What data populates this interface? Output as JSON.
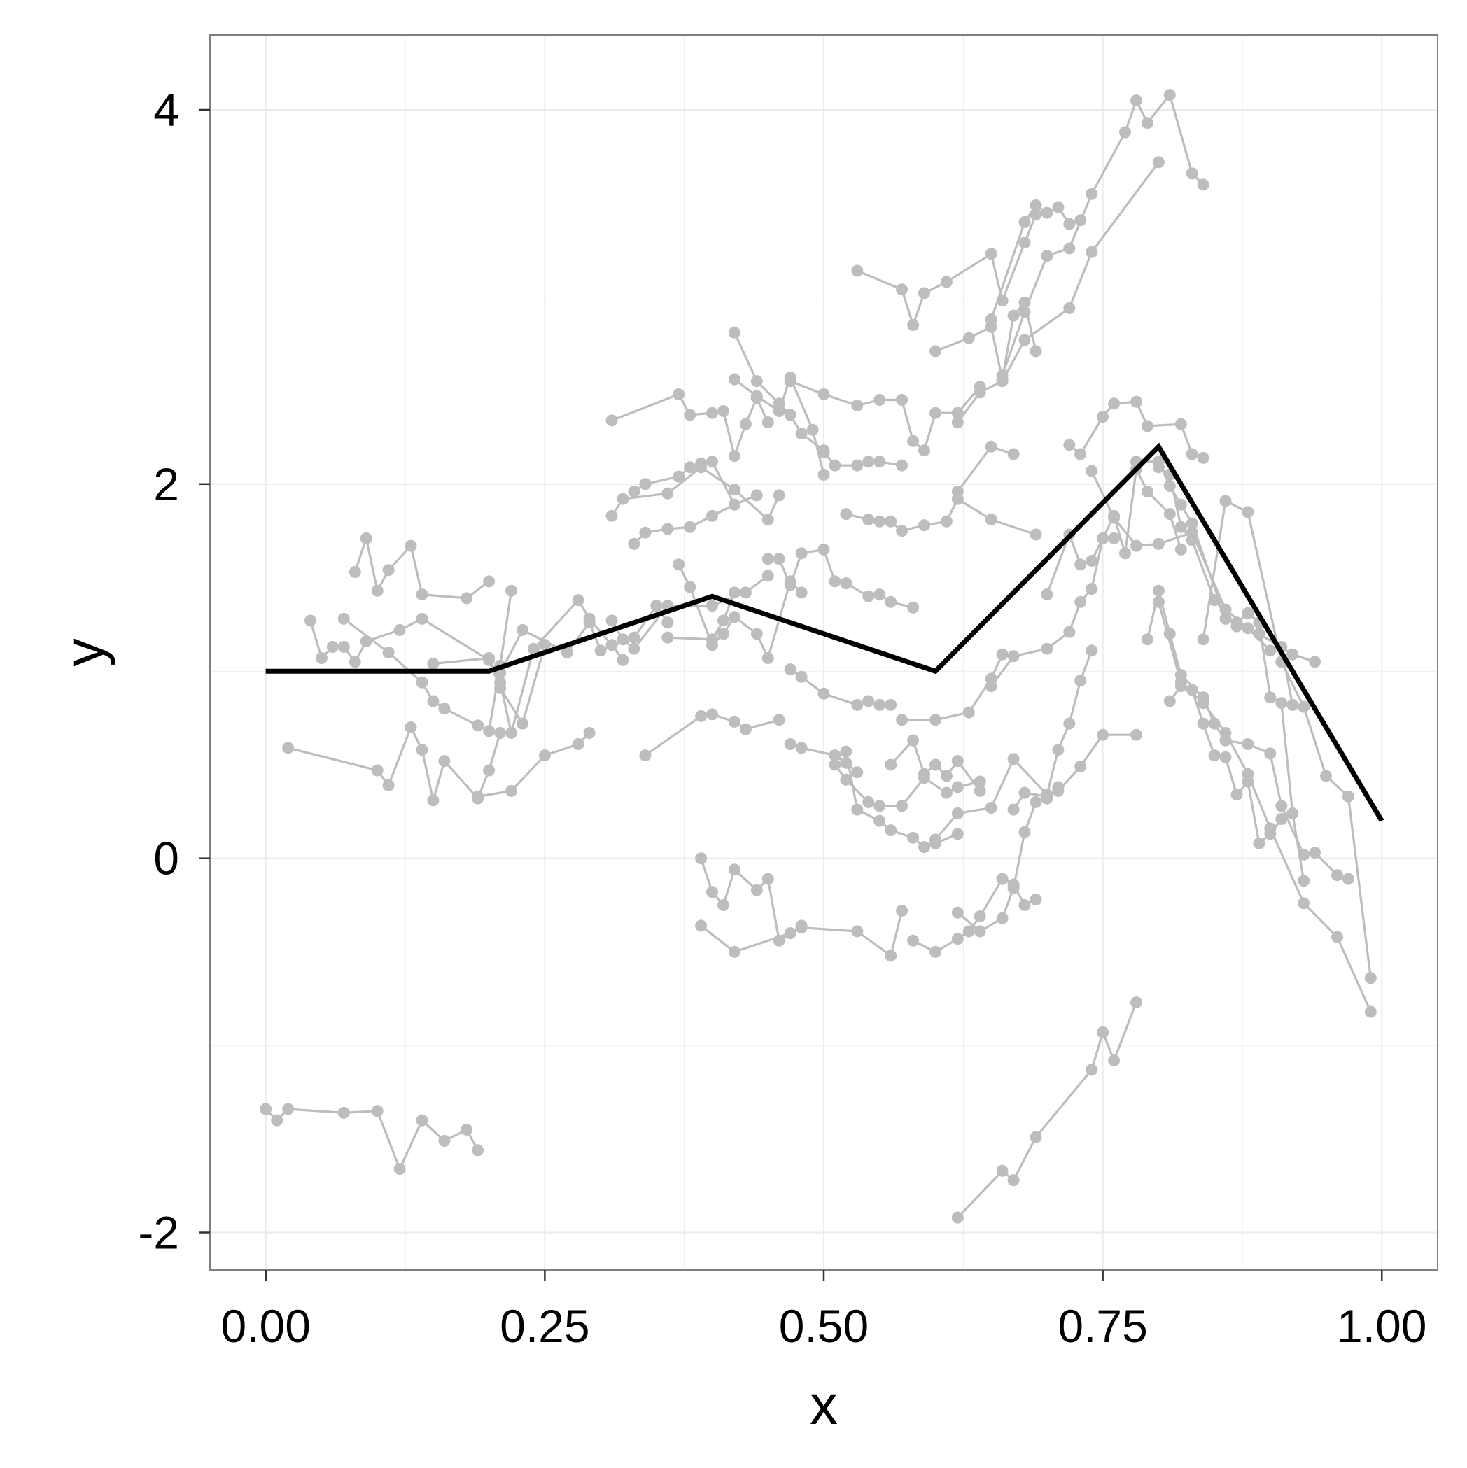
{
  "chart_data": {
    "type": "line",
    "xlabel": "x",
    "ylabel": "y",
    "xlim": [
      -0.05,
      1.05
    ],
    "ylim": [
      -2.2,
      4.4
    ],
    "x_ticks": [
      0.0,
      0.25,
      0.5,
      0.75,
      1.0
    ],
    "x_tick_labels": [
      "0.00",
      "0.25",
      "0.50",
      "0.75",
      "1.00"
    ],
    "y_ticks": [
      -2,
      0,
      2,
      4
    ],
    "y_tick_labels": [
      "-2",
      "0",
      "2",
      "4"
    ],
    "grid": true,
    "colors": {
      "background": "#ffffff",
      "grid": "#ebebeb",
      "panel_border": "#7f7f7f",
      "trajectories": "#bdbdbd",
      "mean_line": "#000000"
    },
    "mean_line": {
      "x": [
        0.0,
        0.2,
        0.4,
        0.6,
        0.8,
        1.0
      ],
      "y": [
        1.0,
        1.0,
        1.4,
        1.0,
        2.2,
        0.2
      ]
    },
    "trajectories": [
      {
        "x": [
          0.0,
          0.01,
          0.02,
          0.07,
          0.1,
          0.12,
          0.14,
          0.16,
          0.18,
          0.19
        ],
        "y": [
          -1.34,
          -1.4,
          -1.34,
          -1.36,
          -1.35,
          -1.66,
          -1.4,
          -1.51,
          -1.45,
          -1.56
        ]
      },
      {
        "x": [
          0.62,
          0.66,
          0.67,
          0.69,
          0.74,
          0.75,
          0.76,
          0.78
        ],
        "y": [
          -1.92,
          -1.67,
          -1.72,
          -1.49,
          -1.13,
          -0.93,
          -1.08,
          -0.77
        ]
      },
      {
        "x": [
          0.02,
          0.1,
          0.11,
          0.13,
          0.14,
          0.15,
          0.16,
          0.19,
          0.2,
          0.21
        ],
        "y": [
          0.59,
          0.47,
          0.39,
          0.7,
          0.58,
          0.31,
          0.52,
          0.32,
          0.47,
          0.67
        ]
      },
      {
        "x": [
          0.08,
          0.09,
          0.1,
          0.11,
          0.13,
          0.14,
          0.18,
          0.2
        ],
        "y": [
          1.53,
          1.71,
          1.43,
          1.54,
          1.67,
          1.41,
          1.39,
          1.48
        ]
      },
      {
        "x": [
          0.04,
          0.05,
          0.06,
          0.07,
          0.08,
          0.09,
          0.12,
          0.14,
          0.2,
          0.21,
          0.23,
          0.25
        ],
        "y": [
          1.27,
          1.07,
          1.13,
          1.13,
          1.05,
          1.16,
          1.22,
          1.28,
          1.06,
          0.91,
          0.72,
          1.14
        ]
      },
      {
        "x": [
          0.07,
          0.11,
          0.14,
          0.15,
          0.16,
          0.19,
          0.2,
          0.21,
          0.22
        ],
        "y": [
          1.28,
          1.1,
          0.94,
          0.84,
          0.8,
          0.71,
          0.68,
          1.03,
          1.43
        ]
      },
      {
        "x": [
          0.15,
          0.2,
          0.21,
          0.22,
          0.24,
          0.28,
          0.29,
          0.31,
          0.32
        ],
        "y": [
          1.04,
          1.07,
          0.94,
          0.67,
          1.12,
          1.38,
          1.28,
          1.14,
          1.06
        ]
      },
      {
        "x": [
          0.19,
          0.22,
          0.25,
          0.28,
          0.29
        ],
        "y": [
          0.33,
          0.36,
          0.55,
          0.61,
          0.67
        ]
      },
      {
        "x": [
          0.21,
          0.23,
          0.27,
          0.29,
          0.3,
          0.33,
          0.35,
          0.36
        ],
        "y": [
          0.99,
          1.22,
          1.1,
          1.26,
          1.11,
          1.18,
          1.35,
          1.26
        ]
      },
      {
        "x": [
          0.31,
          0.32,
          0.33,
          0.36,
          0.4,
          0.43,
          0.45
        ],
        "y": [
          1.27,
          1.17,
          1.12,
          1.35,
          1.35,
          1.42,
          1.51
        ]
      },
      {
        "x": [
          0.31,
          0.37,
          0.38,
          0.4,
          0.41,
          0.42,
          0.43,
          0.44,
          0.45
        ],
        "y": [
          2.34,
          2.48,
          2.37,
          2.38,
          2.39,
          2.15,
          2.32,
          2.46,
          2.33
        ]
      },
      {
        "x": [
          0.31,
          0.32,
          0.36,
          0.39,
          0.42,
          0.45,
          0.46
        ],
        "y": [
          1.83,
          1.92,
          1.95,
          2.09,
          1.97,
          1.81,
          1.94
        ]
      },
      {
        "x": [
          0.33,
          0.34,
          0.37,
          0.38,
          0.39,
          0.4,
          0.42
        ],
        "y": [
          1.96,
          2.0,
          2.04,
          2.09,
          2.11,
          2.12,
          1.89
        ]
      },
      {
        "x": [
          0.33,
          0.34,
          0.36,
          0.38,
          0.4,
          0.42,
          0.44
        ],
        "y": [
          1.68,
          1.74,
          1.76,
          1.77,
          1.83,
          1.89,
          1.94
        ]
      },
      {
        "x": [
          0.34,
          0.39,
          0.4,
          0.42,
          0.43,
          0.46
        ],
        "y": [
          0.55,
          0.76,
          0.77,
          0.73,
          0.69,
          0.74
        ]
      },
      {
        "x": [
          0.37,
          0.38,
          0.4,
          0.41,
          0.42,
          0.44,
          0.45,
          0.47,
          0.48
        ],
        "y": [
          1.57,
          1.45,
          1.14,
          1.2,
          1.29,
          1.2,
          1.07,
          1.48,
          1.42
        ]
      },
      {
        "x": [
          0.36,
          0.4,
          0.41,
          0.42
        ],
        "y": [
          1.18,
          1.17,
          1.27,
          1.42
        ]
      },
      {
        "x": [
          0.39,
          0.4,
          0.41,
          0.42,
          0.44,
          0.45,
          0.46,
          0.48
        ],
        "y": [
          0.0,
          -0.18,
          -0.25,
          -0.06,
          -0.17,
          -0.11,
          -0.44,
          -0.36
        ]
      },
      {
        "x": [
          0.39,
          0.42,
          0.47,
          0.48,
          0.53,
          0.56,
          0.57
        ],
        "y": [
          -0.36,
          -0.5,
          -0.4,
          -0.37,
          -0.39,
          -0.52,
          -0.28
        ]
      },
      {
        "x": [
          0.42,
          0.44,
          0.46,
          0.47,
          0.48,
          0.5
        ],
        "y": [
          2.81,
          2.55,
          2.43,
          2.37,
          2.27,
          2.18
        ]
      },
      {
        "x": [
          0.42,
          0.44,
          0.46,
          0.47,
          0.49,
          0.5
        ],
        "y": [
          2.56,
          2.47,
          2.39,
          2.57,
          2.29,
          2.05
        ]
      },
      {
        "x": [
          0.47,
          0.5,
          0.53,
          0.55,
          0.57,
          0.58,
          0.59,
          0.6,
          0.62,
          0.64
        ],
        "y": [
          2.55,
          2.48,
          2.42,
          2.45,
          2.45,
          2.23,
          2.18,
          2.38,
          2.38,
          2.52
        ]
      },
      {
        "x": [
          0.5,
          0.51,
          0.53,
          0.54,
          0.55,
          0.57
        ],
        "y": [
          2.17,
          2.1,
          2.1,
          2.12,
          2.12,
          2.1
        ]
      },
      {
        "x": [
          0.53,
          0.57,
          0.58,
          0.59,
          0.61,
          0.65,
          0.66,
          0.68,
          0.69
        ],
        "y": [
          3.14,
          3.04,
          2.85,
          3.02,
          3.08,
          3.23,
          2.98,
          3.29,
          3.44
        ]
      },
      {
        "x": [
          0.6,
          0.63,
          0.65,
          0.66,
          0.67,
          0.68,
          0.69
        ],
        "y": [
          2.71,
          2.78,
          2.84,
          2.56,
          2.9,
          2.97,
          2.71
        ]
      },
      {
        "x": [
          0.65,
          0.68,
          0.69,
          0.7,
          0.71,
          0.72,
          0.73
        ],
        "y": [
          2.88,
          3.4,
          3.49,
          3.45,
          3.48,
          3.39,
          3.41
        ]
      },
      {
        "x": [
          0.66,
          0.68,
          0.7,
          0.72,
          0.74,
          0.77,
          0.78,
          0.79,
          0.81,
          0.83,
          0.84
        ],
        "y": [
          2.58,
          2.92,
          3.22,
          3.26,
          3.55,
          3.88,
          4.05,
          3.93,
          4.08,
          3.66,
          3.6
        ]
      },
      {
        "x": [
          0.62,
          0.64,
          0.66,
          0.68,
          0.72,
          0.74,
          0.8
        ],
        "y": [
          2.33,
          2.49,
          2.55,
          2.77,
          2.94,
          3.24,
          3.72
        ]
      },
      {
        "x": [
          0.62,
          0.65,
          0.67
        ],
        "y": [
          1.96,
          2.2,
          2.16
        ]
      },
      {
        "x": [
          0.52,
          0.54,
          0.55,
          0.56,
          0.57,
          0.59,
          0.61,
          0.62,
          0.65,
          0.69
        ],
        "y": [
          1.84,
          1.81,
          1.8,
          1.8,
          1.75,
          1.78,
          1.8,
          1.92,
          1.81,
          1.73
        ]
      },
      {
        "x": [
          0.45,
          0.46,
          0.47,
          0.48,
          0.5,
          0.51,
          0.52,
          0.54,
          0.55,
          0.56,
          0.58
        ],
        "y": [
          1.6,
          1.6,
          1.46,
          1.63,
          1.65,
          1.48,
          1.47,
          1.4,
          1.41,
          1.37,
          1.34
        ]
      },
      {
        "x": [
          0.47,
          0.48,
          0.5,
          0.53,
          0.54,
          0.55,
          0.56
        ],
        "y": [
          1.01,
          0.97,
          0.88,
          0.82,
          0.84,
          0.82,
          0.82
        ]
      },
      {
        "x": [
          0.47,
          0.48,
          0.51,
          0.52,
          0.53
        ],
        "y": [
          0.61,
          0.59,
          0.55,
          0.51,
          0.46
        ]
      },
      {
        "x": [
          0.51,
          0.52,
          0.54,
          0.55,
          0.57,
          0.59,
          0.61,
          0.62,
          0.64
        ],
        "y": [
          0.5,
          0.42,
          0.3,
          0.28,
          0.28,
          0.43,
          0.35,
          0.38,
          0.41
        ]
      },
      {
        "x": [
          0.52,
          0.53,
          0.55,
          0.56,
          0.58,
          0.59,
          0.6,
          0.62
        ],
        "y": [
          0.57,
          0.26,
          0.2,
          0.15,
          0.11,
          0.06,
          0.08,
          0.13
        ]
      },
      {
        "x": [
          0.56,
          0.58,
          0.59,
          0.6,
          0.61,
          0.62,
          0.64
        ],
        "y": [
          0.5,
          0.63,
          0.45,
          0.5,
          0.44,
          0.52,
          0.36
        ]
      },
      {
        "x": [
          0.57,
          0.6,
          0.63,
          0.65,
          0.66
        ],
        "y": [
          0.74,
          0.74,
          0.78,
          0.96,
          1.09
        ]
      },
      {
        "x": [
          0.58,
          0.6,
          0.62,
          0.63,
          0.64,
          0.66,
          0.67,
          0.68,
          0.69
        ],
        "y": [
          -0.44,
          -0.5,
          -0.43,
          -0.39,
          -0.31,
          -0.11,
          -0.14,
          -0.25,
          -0.22
        ]
      },
      {
        "x": [
          0.6,
          0.62,
          0.65,
          0.67,
          0.7,
          0.71,
          0.72,
          0.73,
          0.74
        ],
        "y": [
          0.1,
          0.24,
          0.27,
          0.53,
          0.34,
          0.58,
          0.72,
          0.95,
          1.11
        ]
      },
      {
        "x": [
          0.62,
          0.64,
          0.66,
          0.67,
          0.68,
          0.69,
          0.7,
          0.71
        ],
        "y": [
          -0.29,
          -0.39,
          -0.32,
          -0.16,
          0.14,
          0.3,
          0.32,
          0.38
        ]
      },
      {
        "x": [
          0.65,
          0.67,
          0.7,
          0.72,
          0.73,
          0.74,
          0.75,
          0.76
        ],
        "y": [
          0.92,
          1.08,
          1.12,
          1.21,
          1.37,
          1.44,
          1.71,
          1.71
        ]
      },
      {
        "x": [
          0.67,
          0.68,
          0.7,
          0.71,
          0.73,
          0.75,
          0.78
        ],
        "y": [
          0.26,
          0.35,
          0.33,
          0.36,
          0.49,
          0.66,
          0.66
        ]
      },
      {
        "x": [
          0.7,
          0.72,
          0.73,
          0.74,
          0.76,
          0.77,
          0.78,
          0.79,
          0.81,
          0.82
        ],
        "y": [
          1.41,
          1.73,
          1.57,
          1.59,
          1.83,
          1.63,
          2.08,
          1.96,
          1.84,
          1.65
        ]
      },
      {
        "x": [
          0.72,
          0.73,
          0.75,
          0.76,
          0.78,
          0.79,
          0.82,
          0.83,
          0.84
        ],
        "y": [
          2.21,
          2.16,
          2.36,
          2.43,
          2.44,
          2.31,
          2.32,
          2.16,
          2.14
        ]
      },
      {
        "x": [
          0.74,
          0.76,
          0.78,
          0.8,
          0.83,
          0.86,
          0.88,
          0.9,
          0.91,
          0.92
        ],
        "y": [
          2.07,
          1.82,
          1.67,
          1.68,
          1.74,
          1.33,
          1.23,
          1.11,
          1.13,
          0.82
        ]
      },
      {
        "x": [
          0.78,
          0.8,
          0.81,
          0.82,
          0.83,
          0.86,
          0.87,
          0.88,
          0.89,
          0.9,
          0.91,
          0.92
        ],
        "y": [
          2.12,
          2.12,
          1.99,
          1.89,
          1.79,
          1.28,
          1.26,
          1.31,
          1.26,
          0.86,
          0.83,
          0.24
        ]
      },
      {
        "x": [
          0.8,
          0.81,
          0.82,
          0.83,
          0.85,
          0.87,
          0.89,
          0.92,
          0.94
        ],
        "y": [
          2.09,
          2.05,
          1.77,
          1.7,
          1.38,
          1.24,
          1.2,
          1.09,
          1.05
        ]
      },
      {
        "x": [
          0.84,
          0.86,
          0.88,
          0.91,
          0.93,
          0.95,
          0.97,
          0.99
        ],
        "y": [
          1.17,
          1.91,
          1.85,
          1.05,
          0.81,
          0.44,
          0.33,
          -0.64
        ]
      },
      {
        "x": [
          0.79,
          0.8,
          0.81,
          0.82,
          0.84,
          0.85,
          0.86,
          0.88,
          0.9,
          0.91,
          0.93,
          0.94,
          0.96,
          0.97
        ],
        "y": [
          1.17,
          1.43,
          1.2,
          0.98,
          0.86,
          0.72,
          0.63,
          0.61,
          0.56,
          0.28,
          0.02,
          0.03,
          -0.09,
          -0.11
        ]
      },
      {
        "x": [
          0.81,
          0.82,
          0.83,
          0.84,
          0.85,
          0.86,
          0.87,
          0.88,
          0.89,
          0.9,
          0.91,
          0.92,
          0.93
        ],
        "y": [
          0.84,
          0.92,
          0.9,
          0.72,
          0.55,
          0.54,
          0.34,
          0.41,
          0.08,
          0.13,
          0.21,
          0.24,
          -0.12
        ]
      },
      {
        "x": [
          0.8,
          0.82,
          0.84,
          0.86,
          0.88,
          0.9,
          0.93,
          0.96,
          0.99
        ],
        "y": [
          1.37,
          0.94,
          0.83,
          0.67,
          0.45,
          0.16,
          -0.24,
          -0.42,
          -0.82
        ]
      }
    ]
  }
}
